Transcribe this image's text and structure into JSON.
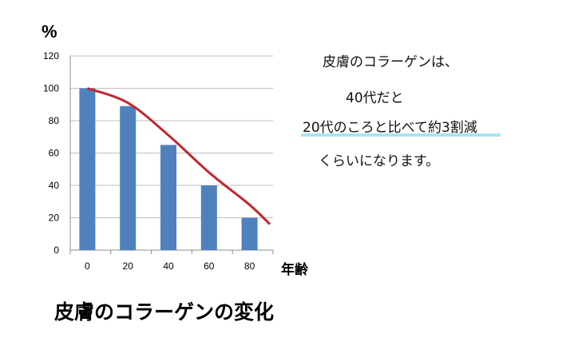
{
  "chart_data": {
    "type": "bar",
    "categories": [
      "0",
      "20",
      "40",
      "60",
      "80"
    ],
    "values": [
      100,
      89,
      65,
      40,
      20
    ],
    "ylim": [
      0,
      120
    ],
    "yticks": [
      0,
      20,
      40,
      60,
      80,
      100,
      120
    ],
    "y_unit": "%",
    "x_unit": "年齢",
    "bar_color": "#4f81bd",
    "trend_line": {
      "type": "line",
      "color": "#c0282c",
      "x": [
        0,
        20,
        40,
        60,
        80,
        90
      ],
      "y": [
        100,
        91,
        71,
        48,
        28,
        16
      ]
    },
    "grid": true,
    "legend": "none"
  },
  "caption": "皮膚のコラーゲンの変化",
  "notes": {
    "line1": "皮膚のコラーゲンは、",
    "line2": "40代だと",
    "line3": "20代のころと比べて約3割減",
    "line4": "くらいになります。"
  },
  "highlight_color": "#a6e4f0"
}
